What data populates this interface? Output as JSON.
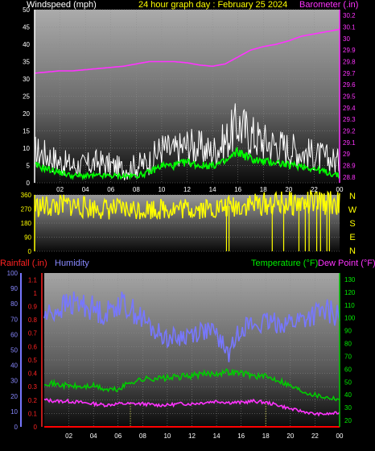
{
  "chart_data": [
    {
      "type": "line",
      "title": "24 hour graph day : February 25 2024",
      "left_axis_label": "Windspeed (mph)",
      "right_axis_label": "Barometer (.in)",
      "x_ticks": [
        "02",
        "04",
        "06",
        "08",
        "10",
        "12",
        "14",
        "16",
        "18",
        "20",
        "22",
        "00"
      ],
      "left_ticks": [
        "0",
        "5",
        "10",
        "15",
        "20",
        "25",
        "30",
        "35",
        "40",
        "45",
        "50"
      ],
      "right_ticks": [
        "28.8",
        "28.9",
        "29",
        "29.1",
        "29.2",
        "29.3",
        "29.4",
        "29.5",
        "29.6",
        "29.7",
        "29.8",
        "29.9",
        "30",
        "30.1",
        "30.2"
      ],
      "ylim_left": [
        0,
        50
      ],
      "ylim_right": [
        28.75,
        30.25
      ],
      "x_hours": [
        0,
        1,
        2,
        3,
        4,
        5,
        6,
        7,
        8,
        9,
        10,
        11,
        12,
        13,
        14,
        15,
        16,
        17,
        18,
        19,
        20,
        21,
        22,
        23,
        24
      ],
      "series": [
        {
          "name": "Windspeed (mph)",
          "axis": "left",
          "color": "#ffffff",
          "values": [
            9,
            8,
            6,
            5,
            5,
            6,
            5,
            4,
            5,
            6,
            10,
            9,
            11,
            10,
            9,
            12,
            17,
            14,
            12,
            11,
            10,
            9,
            8,
            7,
            6
          ]
        },
        {
          "name": "",
          "axis": "left",
          "color": "#00ff00",
          "values": [
            5,
            4,
            3,
            2,
            2,
            2,
            2,
            2,
            2,
            3,
            5,
            5,
            6,
            5,
            5,
            6,
            9,
            7,
            6,
            6,
            5,
            5,
            4,
            3,
            2
          ]
        },
        {
          "name": "Barometer (.in)",
          "axis": "right",
          "color": "#ff33ff",
          "values": [
            29.7,
            29.71,
            29.72,
            29.72,
            29.73,
            29.74,
            29.75,
            29.76,
            29.78,
            29.8,
            29.8,
            29.8,
            29.79,
            29.77,
            29.76,
            29.78,
            29.84,
            29.9,
            29.93,
            29.95,
            29.98,
            30.02,
            30.04,
            30.06,
            30.08
          ]
        }
      ]
    },
    {
      "type": "line",
      "left_ticks": [
        "0",
        "90",
        "180",
        "270",
        "360"
      ],
      "right_labels": [
        "N",
        "W",
        "S",
        "E",
        "N"
      ],
      "ylim": [
        0,
        360
      ],
      "x_hours": [
        0,
        1,
        2,
        3,
        4,
        5,
        6,
        7,
        8,
        9,
        10,
        11,
        12,
        13,
        14,
        15,
        16,
        17,
        18,
        19,
        20,
        21,
        22,
        23,
        24
      ],
      "series": [
        {
          "name": "Wind Direction",
          "color": "#ffff00",
          "values": [
            285,
            285,
            290,
            295,
            280,
            275,
            270,
            265,
            268,
            272,
            270,
            275,
            272,
            275,
            275,
            280,
            290,
            300,
            300,
            305,
            305,
            305,
            310,
            310,
            305
          ]
        }
      ],
      "drops_to_zero_hours": [
        15.1,
        15.3,
        18.7,
        19.6,
        20.8,
        21.3,
        21.6,
        22.2,
        22.5,
        23.0,
        23.2
      ]
    },
    {
      "type": "line",
      "left_axis_labels": [
        "Rainfall (.in)",
        "Humidity"
      ],
      "right_axis_labels": [
        "Temperature (°F)",
        "Dew Point (°F)"
      ],
      "x_ticks": [
        "02",
        "04",
        "06",
        "08",
        "10",
        "12",
        "14",
        "16",
        "18",
        "20",
        "22",
        "00"
      ],
      "humidity_ticks": [
        "0",
        "10",
        "20",
        "30",
        "40",
        "50",
        "60",
        "70",
        "80",
        "90",
        "100"
      ],
      "rain_ticks": [
        "0",
        "0.1",
        "0.2",
        "0.3",
        "0.4",
        "0.5",
        "0.6",
        "0.7",
        "0.8",
        "0.9",
        "1",
        "1.1"
      ],
      "temp_ticks": [
        "20",
        "30",
        "40",
        "50",
        "60",
        "70",
        "80",
        "90",
        "100",
        "110",
        "120",
        "130"
      ],
      "ylim_humidity": [
        0,
        100
      ],
      "ylim_rain": [
        0,
        1.15
      ],
      "ylim_temp": [
        15,
        135
      ],
      "x_hours": [
        0,
        1,
        2,
        3,
        4,
        5,
        6,
        7,
        8,
        9,
        10,
        11,
        12,
        13,
        14,
        15,
        16,
        17,
        18,
        19,
        20,
        21,
        22,
        23,
        24
      ],
      "series": [
        {
          "name": "Humidity",
          "axis": "humidity",
          "color": "#7777ff",
          "values": [
            72,
            76,
            80,
            80,
            77,
            73,
            81,
            77,
            70,
            62,
            58,
            58,
            61,
            63,
            60,
            47,
            66,
            66,
            67,
            68,
            68,
            70,
            73,
            75,
            72
          ]
        },
        {
          "name": "Temperature (°F)",
          "axis": "temp",
          "color": "#00cc00",
          "values": [
            50,
            48,
            47,
            46,
            47,
            44,
            44,
            50,
            52,
            53,
            53,
            54,
            55,
            56,
            57,
            58,
            57,
            55,
            54,
            52,
            47,
            43,
            40,
            38,
            37
          ]
        },
        {
          "name": "Dew Point (°F)",
          "axis": "temp",
          "color": "#ff33ff",
          "values": [
            36,
            35,
            35,
            34,
            33,
            32,
            33,
            33,
            33,
            32,
            32,
            33,
            33,
            34,
            35,
            34,
            34,
            35,
            34,
            32,
            29,
            27,
            25,
            25,
            26
          ]
        },
        {
          "name": "Rainfall (.in)",
          "axis": "rain",
          "color": "#ff0000",
          "values": [
            0,
            0,
            0,
            0,
            0,
            0,
            0,
            0,
            0,
            0,
            0,
            0,
            0,
            0,
            0,
            0,
            0,
            0,
            0,
            0,
            0,
            0,
            0,
            0,
            0
          ]
        }
      ],
      "dotted_markers_hours": [
        7,
        18
      ]
    }
  ]
}
